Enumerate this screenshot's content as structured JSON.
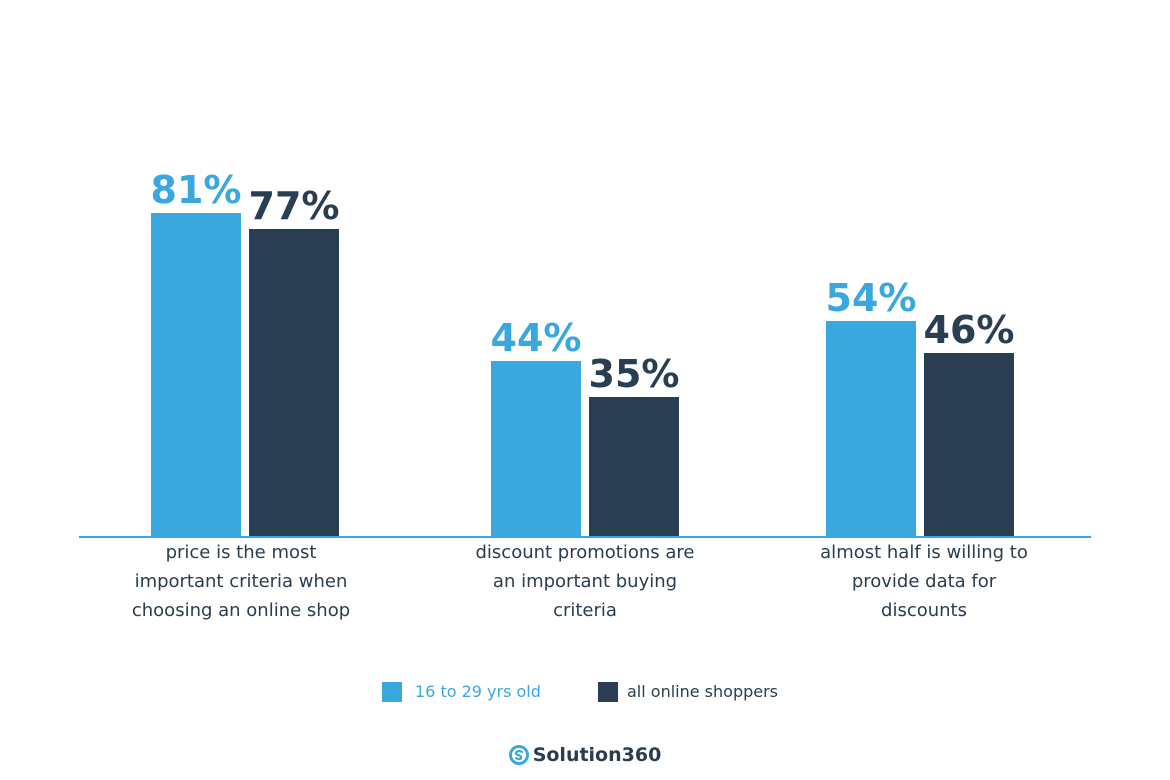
{
  "chart_data": {
    "type": "bar",
    "categories": [
      "price is the most important criteria when choosing an online shop",
      "discount promotions are an important buying criteria",
      "almost half is willing to provide data for discounts"
    ],
    "category_lines": [
      [
        "price is the most",
        "important criteria when",
        "choosing an online shop"
      ],
      [
        "discount promotions are",
        "an important buying",
        "criteria"
      ],
      [
        "almost half is willing to",
        "provide data for",
        "discounts"
      ]
    ],
    "series": [
      {
        "name": "16 to 29 yrs old",
        "values": [
          81,
          44,
          54
        ],
        "labels": [
          "81%",
          "44%",
          "54%"
        ],
        "color": "#3aa8df"
      },
      {
        "name": "all online shoppers",
        "values": [
          77,
          35,
          46
        ],
        "labels": [
          "77%",
          "35%",
          "46%"
        ],
        "color": "#293e52"
      }
    ],
    "unit": "%",
    "ylim": [
      0,
      100
    ],
    "grid": false,
    "legend_position": "bottom",
    "title": "",
    "xlabel": "",
    "ylabel": ""
  },
  "legend": {
    "items": [
      {
        "label": "16 to 29 yrs old",
        "color": "#3aa8df"
      },
      {
        "label": "all online shoppers",
        "color": "#293e52"
      }
    ]
  },
  "brand": {
    "logo_icon": "solution360-logo-icon",
    "name": "Solution360"
  },
  "colors": {
    "axis": "#3aa8df",
    "text": "#2a3d50"
  }
}
